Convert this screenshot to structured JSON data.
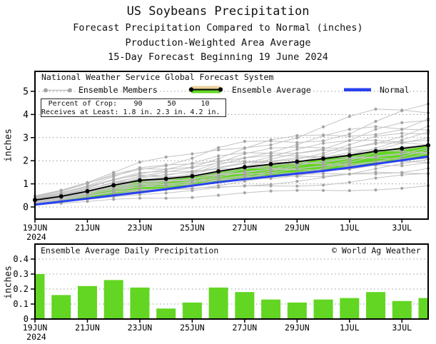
{
  "header": {
    "title": "US Soybeans Precipitation",
    "subtitle1": "Forecast Precipitation Compared to Normal (inches)",
    "subtitle2": "Production-Weighted Area Average",
    "subtitle3": "15-Day Forecast Beginning 19 June 2024"
  },
  "main_chart": {
    "source_label": "National Weather Service Global Forecast System",
    "legend": {
      "ensemble_members": "Ensemble Members",
      "ensemble_average": "Ensemble Average",
      "normal": "Normal"
    },
    "crop_box": {
      "row1_label": "Percent of Crop: ",
      "row1_values": [
        "90",
        "50",
        "10"
      ],
      "row2_label": "Receives at Least: ",
      "row2_values": [
        "1.8 in.",
        "2.3 in.",
        "4.2 in."
      ]
    },
    "ylabel": "inches",
    "ytick_labels": [
      "0",
      "1",
      "2",
      "3",
      "4",
      "5"
    ],
    "xtick_labels": [
      "19JUN",
      "21JUN",
      "23JUN",
      "25JUN",
      "27JUN",
      "29JUN",
      "1JUL",
      "3JUL"
    ],
    "year_label": "2024"
  },
  "bottom_chart": {
    "title": "Ensemble Average Daily Precipitation",
    "credit": "© World Ag Weather",
    "ylabel": "inches",
    "ytick_labels": [
      "0",
      "0.1",
      "0.2",
      "0.3",
      "0.4"
    ],
    "xtick_labels": [
      "19JUN",
      "21JUN",
      "23JUN",
      "25JUN",
      "27JUN",
      "29JUN",
      "1JUL",
      "3JUL"
    ],
    "year_label": "2024"
  },
  "colors": {
    "green": "#62d622",
    "tan": "#ecd09c",
    "blue": "#2841f0",
    "average_line": "#000000",
    "member_line": "#c3c3c3",
    "member_dot": "#a5a5a5",
    "grid": "#999999",
    "frame": "#000000"
  },
  "chart_data": [
    {
      "type": "line",
      "title": "Forecast cumulative precipitation compared to normal (inches)",
      "x": [
        "19JUN",
        "20JUN",
        "21JUN",
        "22JUN",
        "23JUN",
        "24JUN",
        "25JUN",
        "26JUN",
        "27JUN",
        "28JUN",
        "29JUN",
        "30JUN",
        "1JUL",
        "2JUL",
        "3JUL",
        "4JUL"
      ],
      "ylabel": "inches",
      "ylim": [
        -0.5,
        5.9
      ],
      "grid": true,
      "legend_position": "top-left inside plot",
      "series": [
        {
          "name": "Ensemble Average",
          "values": [
            0.3,
            0.46,
            0.68,
            0.94,
            1.15,
            1.22,
            1.33,
            1.54,
            1.72,
            1.85,
            1.96,
            2.09,
            2.23,
            2.41,
            2.53,
            2.67
          ]
        },
        {
          "name": "Normal",
          "values": [
            0.1,
            0.23,
            0.36,
            0.5,
            0.63,
            0.77,
            0.92,
            1.07,
            1.2,
            1.32,
            1.44,
            1.56,
            1.7,
            1.86,
            2.02,
            2.18
          ]
        }
      ],
      "ensemble_members": {
        "note": "approx. 26 GFS ensemble member traces, cumulative values spread from about 0.9 to 4.3 inches by 4JUL",
        "scale_factors": [
          0.34,
          0.5,
          0.58,
          0.65,
          0.7,
          0.74,
          0.78,
          0.81,
          0.84,
          0.87,
          0.9,
          0.93,
          0.96,
          0.99,
          1.02,
          1.05,
          1.08,
          1.12,
          1.16,
          1.2,
          1.25,
          1.31,
          1.37,
          1.44,
          1.52,
          1.61
        ]
      },
      "annotations": {
        "percent_of_crop": [
          90,
          50,
          10
        ],
        "receives_at_least_inches": [
          1.8,
          2.3,
          4.2
        ]
      }
    },
    {
      "type": "bar",
      "title": "Ensemble Average Daily Precipitation",
      "categories": [
        "19JUN",
        "20JUN",
        "21JUN",
        "22JUN",
        "23JUN",
        "24JUN",
        "25JUN",
        "26JUN",
        "27JUN",
        "28JUN",
        "29JUN",
        "30JUN",
        "1JUL",
        "2JUL",
        "3JUL",
        "4JUL"
      ],
      "values": [
        0.3,
        0.16,
        0.22,
        0.26,
        0.21,
        0.07,
        0.11,
        0.21,
        0.18,
        0.13,
        0.11,
        0.13,
        0.14,
        0.18,
        0.12,
        0.14
      ],
      "xlabel": "",
      "ylabel": "inches",
      "ylim": [
        0,
        0.5
      ],
      "grid": true
    }
  ]
}
